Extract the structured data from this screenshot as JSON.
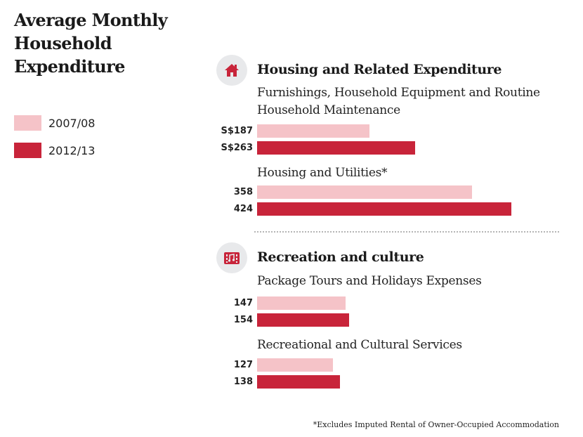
{
  "title": "Average Monthly Household Expenditure",
  "legend": [
    {
      "label": "2007/08",
      "color": "#f5c3c8"
    },
    {
      "label": "2012/13",
      "color": "#c8243a"
    }
  ],
  "sections": [
    {
      "heading": "Housing and Related Expenditure",
      "icon": "house-icon"
    },
    {
      "heading": "Recreation and culture",
      "icon": "recreation-media-icon"
    }
  ],
  "chart_data": {
    "type": "bar",
    "orientation": "horizontal",
    "series": [
      {
        "name": "2007/08",
        "values": [
          187,
          358,
          147,
          127
        ]
      },
      {
        "name": "2012/13",
        "values": [
          263,
          424,
          154,
          138
        ]
      }
    ],
    "categories": [
      "Furnishings, Household Equipment and Routine Household Maintenance",
      "Housing and Utilities*",
      "Package Tours and Holidays Expenses",
      "Recreational and Cultural Services"
    ],
    "value_labels": [
      [
        "S$187",
        "S$263"
      ],
      [
        "358",
        "424"
      ],
      [
        "147",
        "154"
      ],
      [
        "127",
        "138"
      ]
    ],
    "footnote": "*Excludes Imputed Rental of Owner-Occupied Accommodation"
  }
}
